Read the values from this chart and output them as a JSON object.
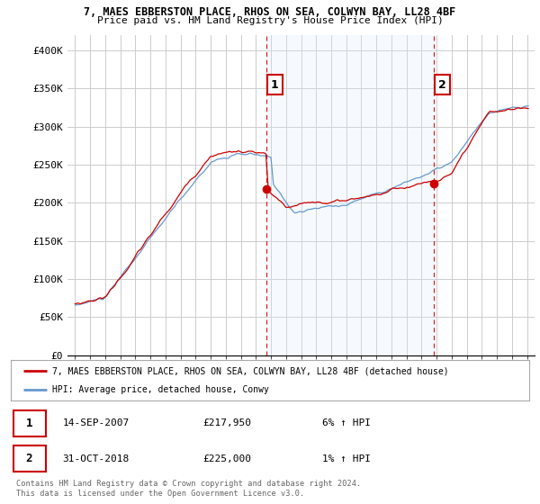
{
  "title_line1": "7, MAES EBBERSTON PLACE, RHOS ON SEA, COLWYN BAY, LL28 4BF",
  "title_line2": "Price paid vs. HM Land Registry's House Price Index (HPI)",
  "ylabel_ticks": [
    "£0",
    "£50K",
    "£100K",
    "£150K",
    "£200K",
    "£250K",
    "£300K",
    "£350K",
    "£400K"
  ],
  "ytick_values": [
    0,
    50000,
    100000,
    150000,
    200000,
    250000,
    300000,
    350000,
    400000
  ],
  "ylim": [
    0,
    420000
  ],
  "xlim_start": 1994.5,
  "xlim_end": 2025.5,
  "marker1_x": 2007.7,
  "marker1_y": 217950,
  "marker2_x": 2018.83,
  "marker2_y": 225000,
  "legend_line1": "7, MAES EBBERSTON PLACE, RHOS ON SEA, COLWYN BAY, LL28 4BF (detached house)",
  "legend_line2": "HPI: Average price, detached house, Conwy",
  "table_row1": [
    "1",
    "14-SEP-2007",
    "£217,950",
    "6% ↑ HPI"
  ],
  "table_row2": [
    "2",
    "31-OCT-2018",
    "£225,000",
    "1% ↑ HPI"
  ],
  "footnote": "Contains HM Land Registry data © Crown copyright and database right 2024.\nThis data is licensed under the Open Government Licence v3.0.",
  "red_color": "#cc0000",
  "blue_color": "#6699cc",
  "blue_fill": "#ddeeff",
  "dashed_color": "#cc0000",
  "background_color": "#ffffff",
  "grid_color": "#cccccc",
  "shade_color": "#ddeeff"
}
